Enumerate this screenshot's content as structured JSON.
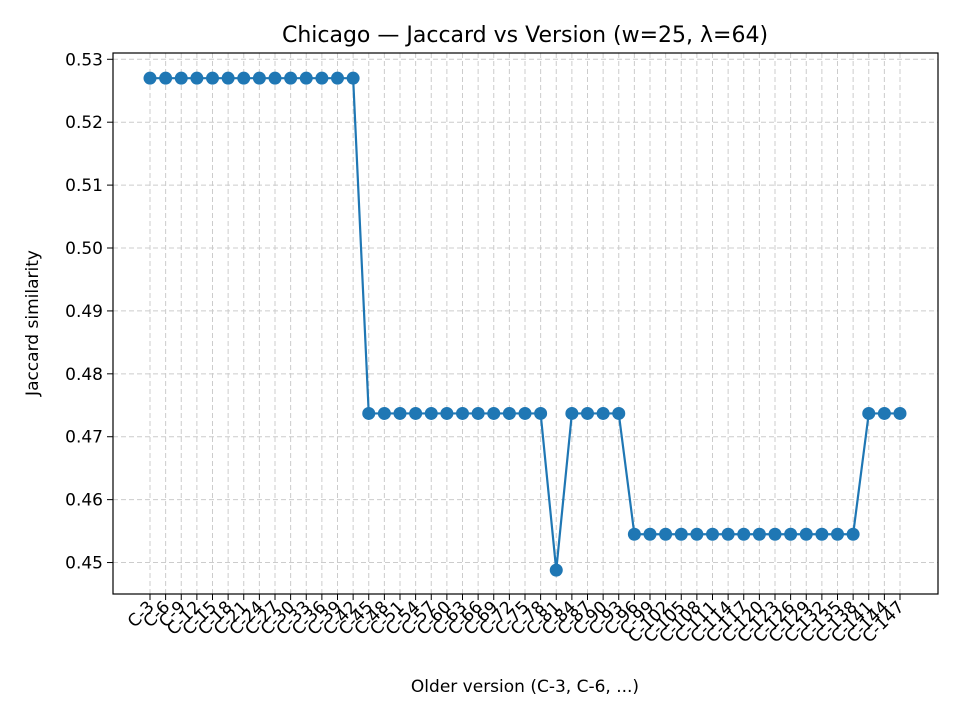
{
  "chart_data": {
    "type": "line",
    "title": "Chicago — Jaccard vs Version (w=25, λ=64)",
    "xlabel": "Older version (C-3, C-6, ...)",
    "ylabel": "Jaccard similarity",
    "ylim": [
      0.445,
      0.531
    ],
    "yticks": [
      0.45,
      0.46,
      0.47,
      0.48,
      0.49,
      0.5,
      0.51,
      0.52,
      0.53
    ],
    "ytick_labels": [
      "0.45",
      "0.46",
      "0.47",
      "0.48",
      "0.49",
      "0.50",
      "0.51",
      "0.52",
      "0.53"
    ],
    "grid": true,
    "line_color": "#1f77b4",
    "categories": [
      "C-3",
      "C-6",
      "C-9",
      "C-12",
      "C-15",
      "C-18",
      "C-21",
      "C-24",
      "C-27",
      "C-30",
      "C-33",
      "C-36",
      "C-39",
      "C-42",
      "C-45",
      "C-48",
      "C-51",
      "C-54",
      "C-57",
      "C-60",
      "C-63",
      "C-66",
      "C-69",
      "C-72",
      "C-75",
      "C-78",
      "C-81",
      "C-84",
      "C-87",
      "C-90",
      "C-93",
      "C-96",
      "C-99",
      "C-102",
      "C-105",
      "C-108",
      "C-111",
      "C-114",
      "C-117",
      "C-120",
      "C-123",
      "C-126",
      "C-129",
      "C-132",
      "C-135",
      "C-138",
      "C-141",
      "C-144",
      "C-147"
    ],
    "values": [
      0.527,
      0.527,
      0.527,
      0.527,
      0.527,
      0.527,
      0.527,
      0.527,
      0.527,
      0.527,
      0.527,
      0.527,
      0.527,
      0.527,
      0.4737,
      0.4737,
      0.4737,
      0.4737,
      0.4737,
      0.4737,
      0.4737,
      0.4737,
      0.4737,
      0.4737,
      0.4737,
      0.4737,
      0.4488,
      0.4737,
      0.4737,
      0.4737,
      0.4737,
      0.4545,
      0.4545,
      0.4545,
      0.4545,
      0.4545,
      0.4545,
      0.4545,
      0.4545,
      0.4545,
      0.4545,
      0.4545,
      0.4545,
      0.4545,
      0.4545,
      0.4545,
      0.4737,
      0.4737,
      0.4737
    ]
  }
}
